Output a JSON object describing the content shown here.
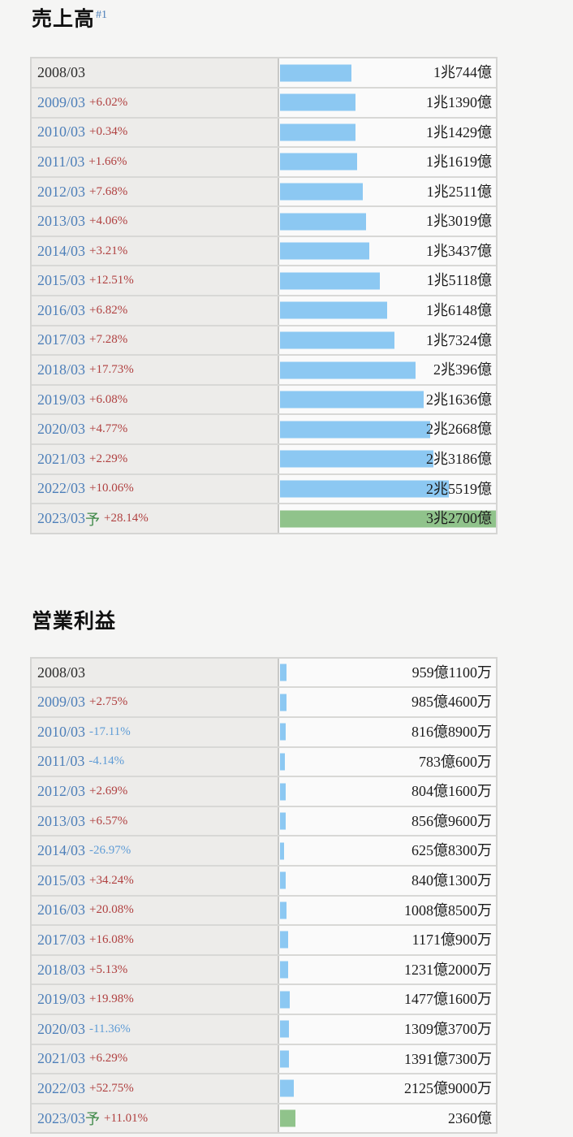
{
  "page_background": "#f5f5f4",
  "colors": {
    "bar_blue": "#8cc8f2",
    "bar_green": "#90c38b",
    "year_link_blue": "#4d7fb9",
    "year_plain": "#2b2b2b",
    "pct_up_red": "#b04040",
    "pct_down_blue": "#5f9cd6",
    "forecast_mark_green": "#3e8948",
    "title_sup_blue": "#4d7fb9",
    "value_text": "#1c1c1c",
    "label_cell_bg": "#edecea",
    "bar_cell_bg": "#fafafa"
  },
  "sections": [
    {
      "title": "売上高",
      "title_sup": "#1",
      "scale_max_oku": 32700,
      "rows": [
        {
          "year": "2008/03",
          "forecast_mark": "",
          "pct": "",
          "pct_dir": "",
          "value_label": "1兆744億",
          "value_oku": 10744,
          "bar": "blue",
          "year_is_link": false
        },
        {
          "year": "2009/03",
          "forecast_mark": "",
          "pct": "+6.02%",
          "pct_dir": "up",
          "value_label": "1兆1390億",
          "value_oku": 11390,
          "bar": "blue",
          "year_is_link": true
        },
        {
          "year": "2010/03",
          "forecast_mark": "",
          "pct": "+0.34%",
          "pct_dir": "up",
          "value_label": "1兆1429億",
          "value_oku": 11429,
          "bar": "blue",
          "year_is_link": true
        },
        {
          "year": "2011/03",
          "forecast_mark": "",
          "pct": "+1.66%",
          "pct_dir": "up",
          "value_label": "1兆1619億",
          "value_oku": 11619,
          "bar": "blue",
          "year_is_link": true
        },
        {
          "year": "2012/03",
          "forecast_mark": "",
          "pct": "+7.68%",
          "pct_dir": "up",
          "value_label": "1兆2511億",
          "value_oku": 12511,
          "bar": "blue",
          "year_is_link": true
        },
        {
          "year": "2013/03",
          "forecast_mark": "",
          "pct": "+4.06%",
          "pct_dir": "up",
          "value_label": "1兆3019億",
          "value_oku": 13019,
          "bar": "blue",
          "year_is_link": true
        },
        {
          "year": "2014/03",
          "forecast_mark": "",
          "pct": "+3.21%",
          "pct_dir": "up",
          "value_label": "1兆3437億",
          "value_oku": 13437,
          "bar": "blue",
          "year_is_link": true
        },
        {
          "year": "2015/03",
          "forecast_mark": "",
          "pct": "+12.51%",
          "pct_dir": "up",
          "value_label": "1兆5118億",
          "value_oku": 15118,
          "bar": "blue",
          "year_is_link": true
        },
        {
          "year": "2016/03",
          "forecast_mark": "",
          "pct": "+6.82%",
          "pct_dir": "up",
          "value_label": "1兆6148億",
          "value_oku": 16148,
          "bar": "blue",
          "year_is_link": true
        },
        {
          "year": "2017/03",
          "forecast_mark": "",
          "pct": "+7.28%",
          "pct_dir": "up",
          "value_label": "1兆7324億",
          "value_oku": 17324,
          "bar": "blue",
          "year_is_link": true
        },
        {
          "year": "2018/03",
          "forecast_mark": "",
          "pct": "+17.73%",
          "pct_dir": "up",
          "value_label": "2兆396億",
          "value_oku": 20396,
          "bar": "blue",
          "year_is_link": true
        },
        {
          "year": "2019/03",
          "forecast_mark": "",
          "pct": "+6.08%",
          "pct_dir": "up",
          "value_label": "2兆1636億",
          "value_oku": 21636,
          "bar": "blue",
          "year_is_link": true
        },
        {
          "year": "2020/03",
          "forecast_mark": "",
          "pct": "+4.77%",
          "pct_dir": "up",
          "value_label": "2兆2668億",
          "value_oku": 22668,
          "bar": "blue",
          "year_is_link": true
        },
        {
          "year": "2021/03",
          "forecast_mark": "",
          "pct": "+2.29%",
          "pct_dir": "up",
          "value_label": "2兆3186億",
          "value_oku": 23186,
          "bar": "blue",
          "year_is_link": true
        },
        {
          "year": "2022/03",
          "forecast_mark": "",
          "pct": "+10.06%",
          "pct_dir": "up",
          "value_label": "2兆5519億",
          "value_oku": 25519,
          "bar": "blue",
          "year_is_link": true
        },
        {
          "year": "2023/03",
          "forecast_mark": "予",
          "pct": "+28.14%",
          "pct_dir": "up",
          "value_label": "3兆2700億",
          "value_oku": 32700,
          "bar": "green",
          "year_is_link": true
        }
      ]
    },
    {
      "title": "営業利益",
      "title_sup": "",
      "scale_max_oku": 32700,
      "rows": [
        {
          "year": "2008/03",
          "forecast_mark": "",
          "pct": "",
          "pct_dir": "",
          "value_label": "959億1100万",
          "value_oku": 959.11,
          "bar": "blue",
          "year_is_link": false
        },
        {
          "year": "2009/03",
          "forecast_mark": "",
          "pct": "+2.75%",
          "pct_dir": "up",
          "value_label": "985億4600万",
          "value_oku": 985.46,
          "bar": "blue",
          "year_is_link": true
        },
        {
          "year": "2010/03",
          "forecast_mark": "",
          "pct": "-17.11%",
          "pct_dir": "down",
          "value_label": "816億8900万",
          "value_oku": 816.89,
          "bar": "blue",
          "year_is_link": true
        },
        {
          "year": "2011/03",
          "forecast_mark": "",
          "pct": "-4.14%",
          "pct_dir": "down",
          "value_label": "783億600万",
          "value_oku": 783.06,
          "bar": "blue",
          "year_is_link": true
        },
        {
          "year": "2012/03",
          "forecast_mark": "",
          "pct": "+2.69%",
          "pct_dir": "up",
          "value_label": "804億1600万",
          "value_oku": 804.16,
          "bar": "blue",
          "year_is_link": true
        },
        {
          "year": "2013/03",
          "forecast_mark": "",
          "pct": "+6.57%",
          "pct_dir": "up",
          "value_label": "856億9600万",
          "value_oku": 856.96,
          "bar": "blue",
          "year_is_link": true
        },
        {
          "year": "2014/03",
          "forecast_mark": "",
          "pct": "-26.97%",
          "pct_dir": "down",
          "value_label": "625億8300万",
          "value_oku": 625.83,
          "bar": "blue",
          "year_is_link": true
        },
        {
          "year": "2015/03",
          "forecast_mark": "",
          "pct": "+34.24%",
          "pct_dir": "up",
          "value_label": "840億1300万",
          "value_oku": 840.13,
          "bar": "blue",
          "year_is_link": true
        },
        {
          "year": "2016/03",
          "forecast_mark": "",
          "pct": "+20.08%",
          "pct_dir": "up",
          "value_label": "1008億8500万",
          "value_oku": 1008.85,
          "bar": "blue",
          "year_is_link": true
        },
        {
          "year": "2017/03",
          "forecast_mark": "",
          "pct": "+16.08%",
          "pct_dir": "up",
          "value_label": "1171億900万",
          "value_oku": 1171.09,
          "bar": "blue",
          "year_is_link": true
        },
        {
          "year": "2018/03",
          "forecast_mark": "",
          "pct": "+5.13%",
          "pct_dir": "up",
          "value_label": "1231億2000万",
          "value_oku": 1231.2,
          "bar": "blue",
          "year_is_link": true
        },
        {
          "year": "2019/03",
          "forecast_mark": "",
          "pct": "+19.98%",
          "pct_dir": "up",
          "value_label": "1477億1600万",
          "value_oku": 1477.16,
          "bar": "blue",
          "year_is_link": true
        },
        {
          "year": "2020/03",
          "forecast_mark": "",
          "pct": "-11.36%",
          "pct_dir": "down",
          "value_label": "1309億3700万",
          "value_oku": 1309.37,
          "bar": "blue",
          "year_is_link": true
        },
        {
          "year": "2021/03",
          "forecast_mark": "",
          "pct": "+6.29%",
          "pct_dir": "up",
          "value_label": "1391億7300万",
          "value_oku": 1391.73,
          "bar": "blue",
          "year_is_link": true
        },
        {
          "year": "2022/03",
          "forecast_mark": "",
          "pct": "+52.75%",
          "pct_dir": "up",
          "value_label": "2125億9000万",
          "value_oku": 2125.9,
          "bar": "blue",
          "year_is_link": true
        },
        {
          "year": "2023/03",
          "forecast_mark": "予",
          "pct": "+11.01%",
          "pct_dir": "up",
          "value_label": "2360億",
          "value_oku": 2360,
          "bar": "green",
          "year_is_link": true
        }
      ]
    }
  ],
  "chart_data": [
    {
      "type": "bar",
      "orientation": "horizontal",
      "title": "売上高",
      "unit": "億円",
      "categories": [
        "2008/03",
        "2009/03",
        "2010/03",
        "2011/03",
        "2012/03",
        "2013/03",
        "2014/03",
        "2015/03",
        "2016/03",
        "2017/03",
        "2018/03",
        "2019/03",
        "2020/03",
        "2021/03",
        "2022/03",
        "2023/03予"
      ],
      "values": [
        10744,
        11390,
        11429,
        11619,
        12511,
        13019,
        13437,
        15118,
        16148,
        17324,
        20396,
        21636,
        22668,
        23186,
        25519,
        32700
      ],
      "pct_change": [
        null,
        6.02,
        0.34,
        1.66,
        7.68,
        4.06,
        3.21,
        12.51,
        6.82,
        7.28,
        17.73,
        6.08,
        4.77,
        2.29,
        10.06,
        28.14
      ],
      "value_labels": [
        "1兆744億",
        "1兆1390億",
        "1兆1429億",
        "1兆1619億",
        "1兆2511億",
        "1兆3019億",
        "1兆3437億",
        "1兆5118億",
        "1兆6148億",
        "1兆7324億",
        "2兆396億",
        "2兆1636億",
        "2兆2668億",
        "2兆3186億",
        "2兆5519億",
        "3兆2700億"
      ],
      "bar_colors": [
        "#8cc8f2",
        "#8cc8f2",
        "#8cc8f2",
        "#8cc8f2",
        "#8cc8f2",
        "#8cc8f2",
        "#8cc8f2",
        "#8cc8f2",
        "#8cc8f2",
        "#8cc8f2",
        "#8cc8f2",
        "#8cc8f2",
        "#8cc8f2",
        "#8cc8f2",
        "#8cc8f2",
        "#90c38b"
      ],
      "xlim": [
        0,
        32700
      ],
      "grid": false,
      "legend": false
    },
    {
      "type": "bar",
      "orientation": "horizontal",
      "title": "営業利益",
      "unit": "億円",
      "categories": [
        "2008/03",
        "2009/03",
        "2010/03",
        "2011/03",
        "2012/03",
        "2013/03",
        "2014/03",
        "2015/03",
        "2016/03",
        "2017/03",
        "2018/03",
        "2019/03",
        "2020/03",
        "2021/03",
        "2022/03",
        "2023/03予"
      ],
      "values": [
        959.11,
        985.46,
        816.89,
        783.06,
        804.16,
        856.96,
        625.83,
        840.13,
        1008.85,
        1171.09,
        1231.2,
        1477.16,
        1309.37,
        1391.73,
        2125.9,
        2360
      ],
      "pct_change": [
        null,
        2.75,
        -17.11,
        -4.14,
        2.69,
        6.57,
        -26.97,
        34.24,
        20.08,
        16.08,
        5.13,
        19.98,
        -11.36,
        6.29,
        52.75,
        11.01
      ],
      "value_labels": [
        "959億1100万",
        "985億4600万",
        "816億8900万",
        "783億600万",
        "804億1600万",
        "856億9600万",
        "625億8300万",
        "840億1300万",
        "1008億8500万",
        "1171億900万",
        "1231億2000万",
        "1477億1600万",
        "1309億3700万",
        "1391億7300万",
        "2125億9000万",
        "2360億"
      ],
      "bar_colors": [
        "#8cc8f2",
        "#8cc8f2",
        "#8cc8f2",
        "#8cc8f2",
        "#8cc8f2",
        "#8cc8f2",
        "#8cc8f2",
        "#8cc8f2",
        "#8cc8f2",
        "#8cc8f2",
        "#8cc8f2",
        "#8cc8f2",
        "#8cc8f2",
        "#8cc8f2",
        "#8cc8f2",
        "#90c38b"
      ],
      "xlim": [
        0,
        32700
      ],
      "grid": false,
      "legend": false
    }
  ]
}
